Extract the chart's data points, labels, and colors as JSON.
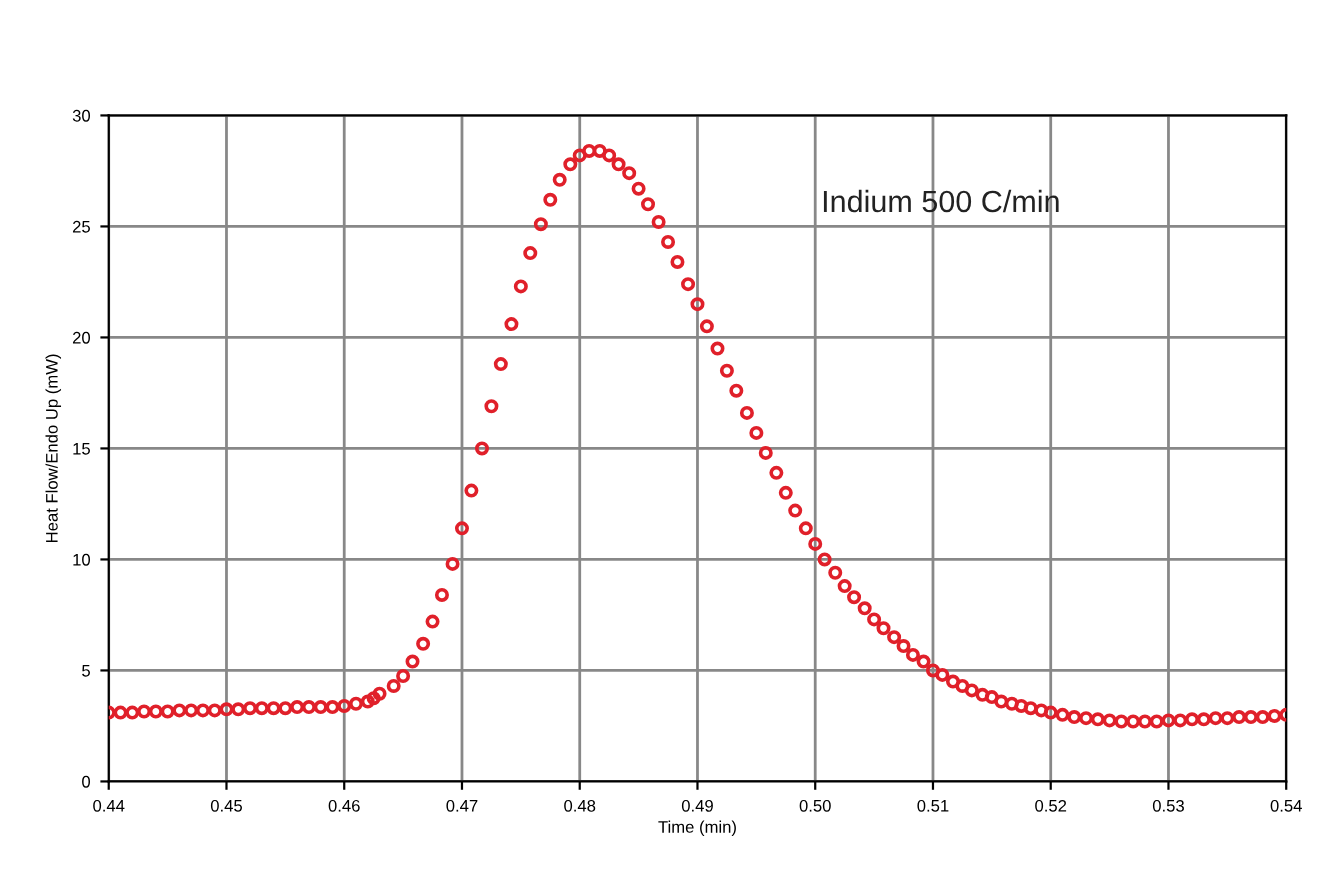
{
  "chart_data": {
    "type": "scatter",
    "xlabel": "Time (min)",
    "ylabel": "Heat Flow/Endo Up (mW)",
    "annotations": [
      "Indium 500 C/min"
    ],
    "xlim": [
      0.44,
      0.54
    ],
    "xticks": [
      {
        "value": 0.44,
        "label": "0.44"
      },
      {
        "value": 0.45,
        "label": "0.45"
      },
      {
        "value": 0.46,
        "label": "0.46"
      },
      {
        "value": 0.47,
        "label": "0.47"
      },
      {
        "value": 0.48,
        "label": "0.48"
      },
      {
        "value": 0.49,
        "label": "0.49"
      },
      {
        "value": 0.5,
        "label": "0.50"
      },
      {
        "value": 0.51,
        "label": "0.51"
      },
      {
        "value": 0.52,
        "label": "0.52"
      },
      {
        "value": 0.53,
        "label": "0.53"
      },
      {
        "value": 0.54,
        "label": "0.54"
      }
    ],
    "ylim": [
      0,
      30
    ],
    "yticks": [
      0,
      5,
      10,
      15,
      20,
      25,
      30
    ],
    "grid": true,
    "marker": "circle",
    "legend": false,
    "series": [
      {
        "color": "#e0202a",
        "x": [
          0.44,
          0.441,
          0.442,
          0.443,
          0.444,
          0.445,
          0.446,
          0.447,
          0.448,
          0.449,
          0.45,
          0.451,
          0.452,
          0.453,
          0.454,
          0.455,
          0.456,
          0.457,
          0.458,
          0.459,
          0.46,
          0.461,
          0.462,
          0.4625,
          0.463,
          0.4642,
          0.465,
          0.4658,
          0.4667,
          0.4675,
          0.4683,
          0.4692,
          0.47,
          0.4708,
          0.4717,
          0.4725,
          0.4733,
          0.4742,
          0.475,
          0.4758,
          0.4767,
          0.4775,
          0.4783,
          0.4792,
          0.48,
          0.4808,
          0.4817,
          0.4825,
          0.4833,
          0.4842,
          0.485,
          0.4858,
          0.4867,
          0.4875,
          0.4883,
          0.4892,
          0.49,
          0.4908,
          0.4917,
          0.4925,
          0.4933,
          0.4942,
          0.495,
          0.4958,
          0.4967,
          0.4975,
          0.4983,
          0.4992,
          0.5,
          0.5008,
          0.5017,
          0.5025,
          0.5033,
          0.5042,
          0.505,
          0.5058,
          0.5067,
          0.5075,
          0.5083,
          0.5092,
          0.51,
          0.5108,
          0.5117,
          0.5125,
          0.5133,
          0.5142,
          0.515,
          0.5158,
          0.5167,
          0.5175,
          0.5183,
          0.5192,
          0.52,
          0.521,
          0.522,
          0.523,
          0.524,
          0.525,
          0.526,
          0.527,
          0.528,
          0.529,
          0.53,
          0.531,
          0.532,
          0.533,
          0.534,
          0.535,
          0.536,
          0.537,
          0.538,
          0.539,
          0.54
        ],
        "values": [
          3.1,
          3.1,
          3.1,
          3.15,
          3.15,
          3.15,
          3.2,
          3.2,
          3.2,
          3.2,
          3.25,
          3.25,
          3.3,
          3.3,
          3.3,
          3.3,
          3.35,
          3.35,
          3.35,
          3.35,
          3.4,
          3.5,
          3.6,
          3.75,
          3.95,
          4.3,
          4.75,
          5.4,
          6.2,
          7.2,
          8.4,
          9.8,
          11.4,
          13.1,
          15.0,
          16.9,
          18.8,
          20.6,
          22.3,
          23.8,
          25.1,
          26.2,
          27.1,
          27.8,
          28.2,
          28.4,
          28.4,
          28.2,
          27.8,
          27.4,
          26.7,
          26.0,
          25.2,
          24.3,
          23.4,
          22.4,
          21.5,
          20.5,
          19.5,
          18.5,
          17.6,
          16.6,
          15.7,
          14.8,
          13.9,
          13.0,
          12.2,
          11.4,
          10.7,
          10.0,
          9.4,
          8.8,
          8.3,
          7.8,
          7.3,
          6.9,
          6.5,
          6.1,
          5.7,
          5.4,
          5.0,
          4.8,
          4.5,
          4.3,
          4.1,
          3.9,
          3.8,
          3.6,
          3.5,
          3.4,
          3.3,
          3.2,
          3.1,
          3.0,
          2.9,
          2.85,
          2.8,
          2.75,
          2.7,
          2.7,
          2.7,
          2.7,
          2.75,
          2.75,
          2.8,
          2.8,
          2.85,
          2.85,
          2.9,
          2.9,
          2.9,
          2.95,
          3.0
        ]
      }
    ]
  }
}
